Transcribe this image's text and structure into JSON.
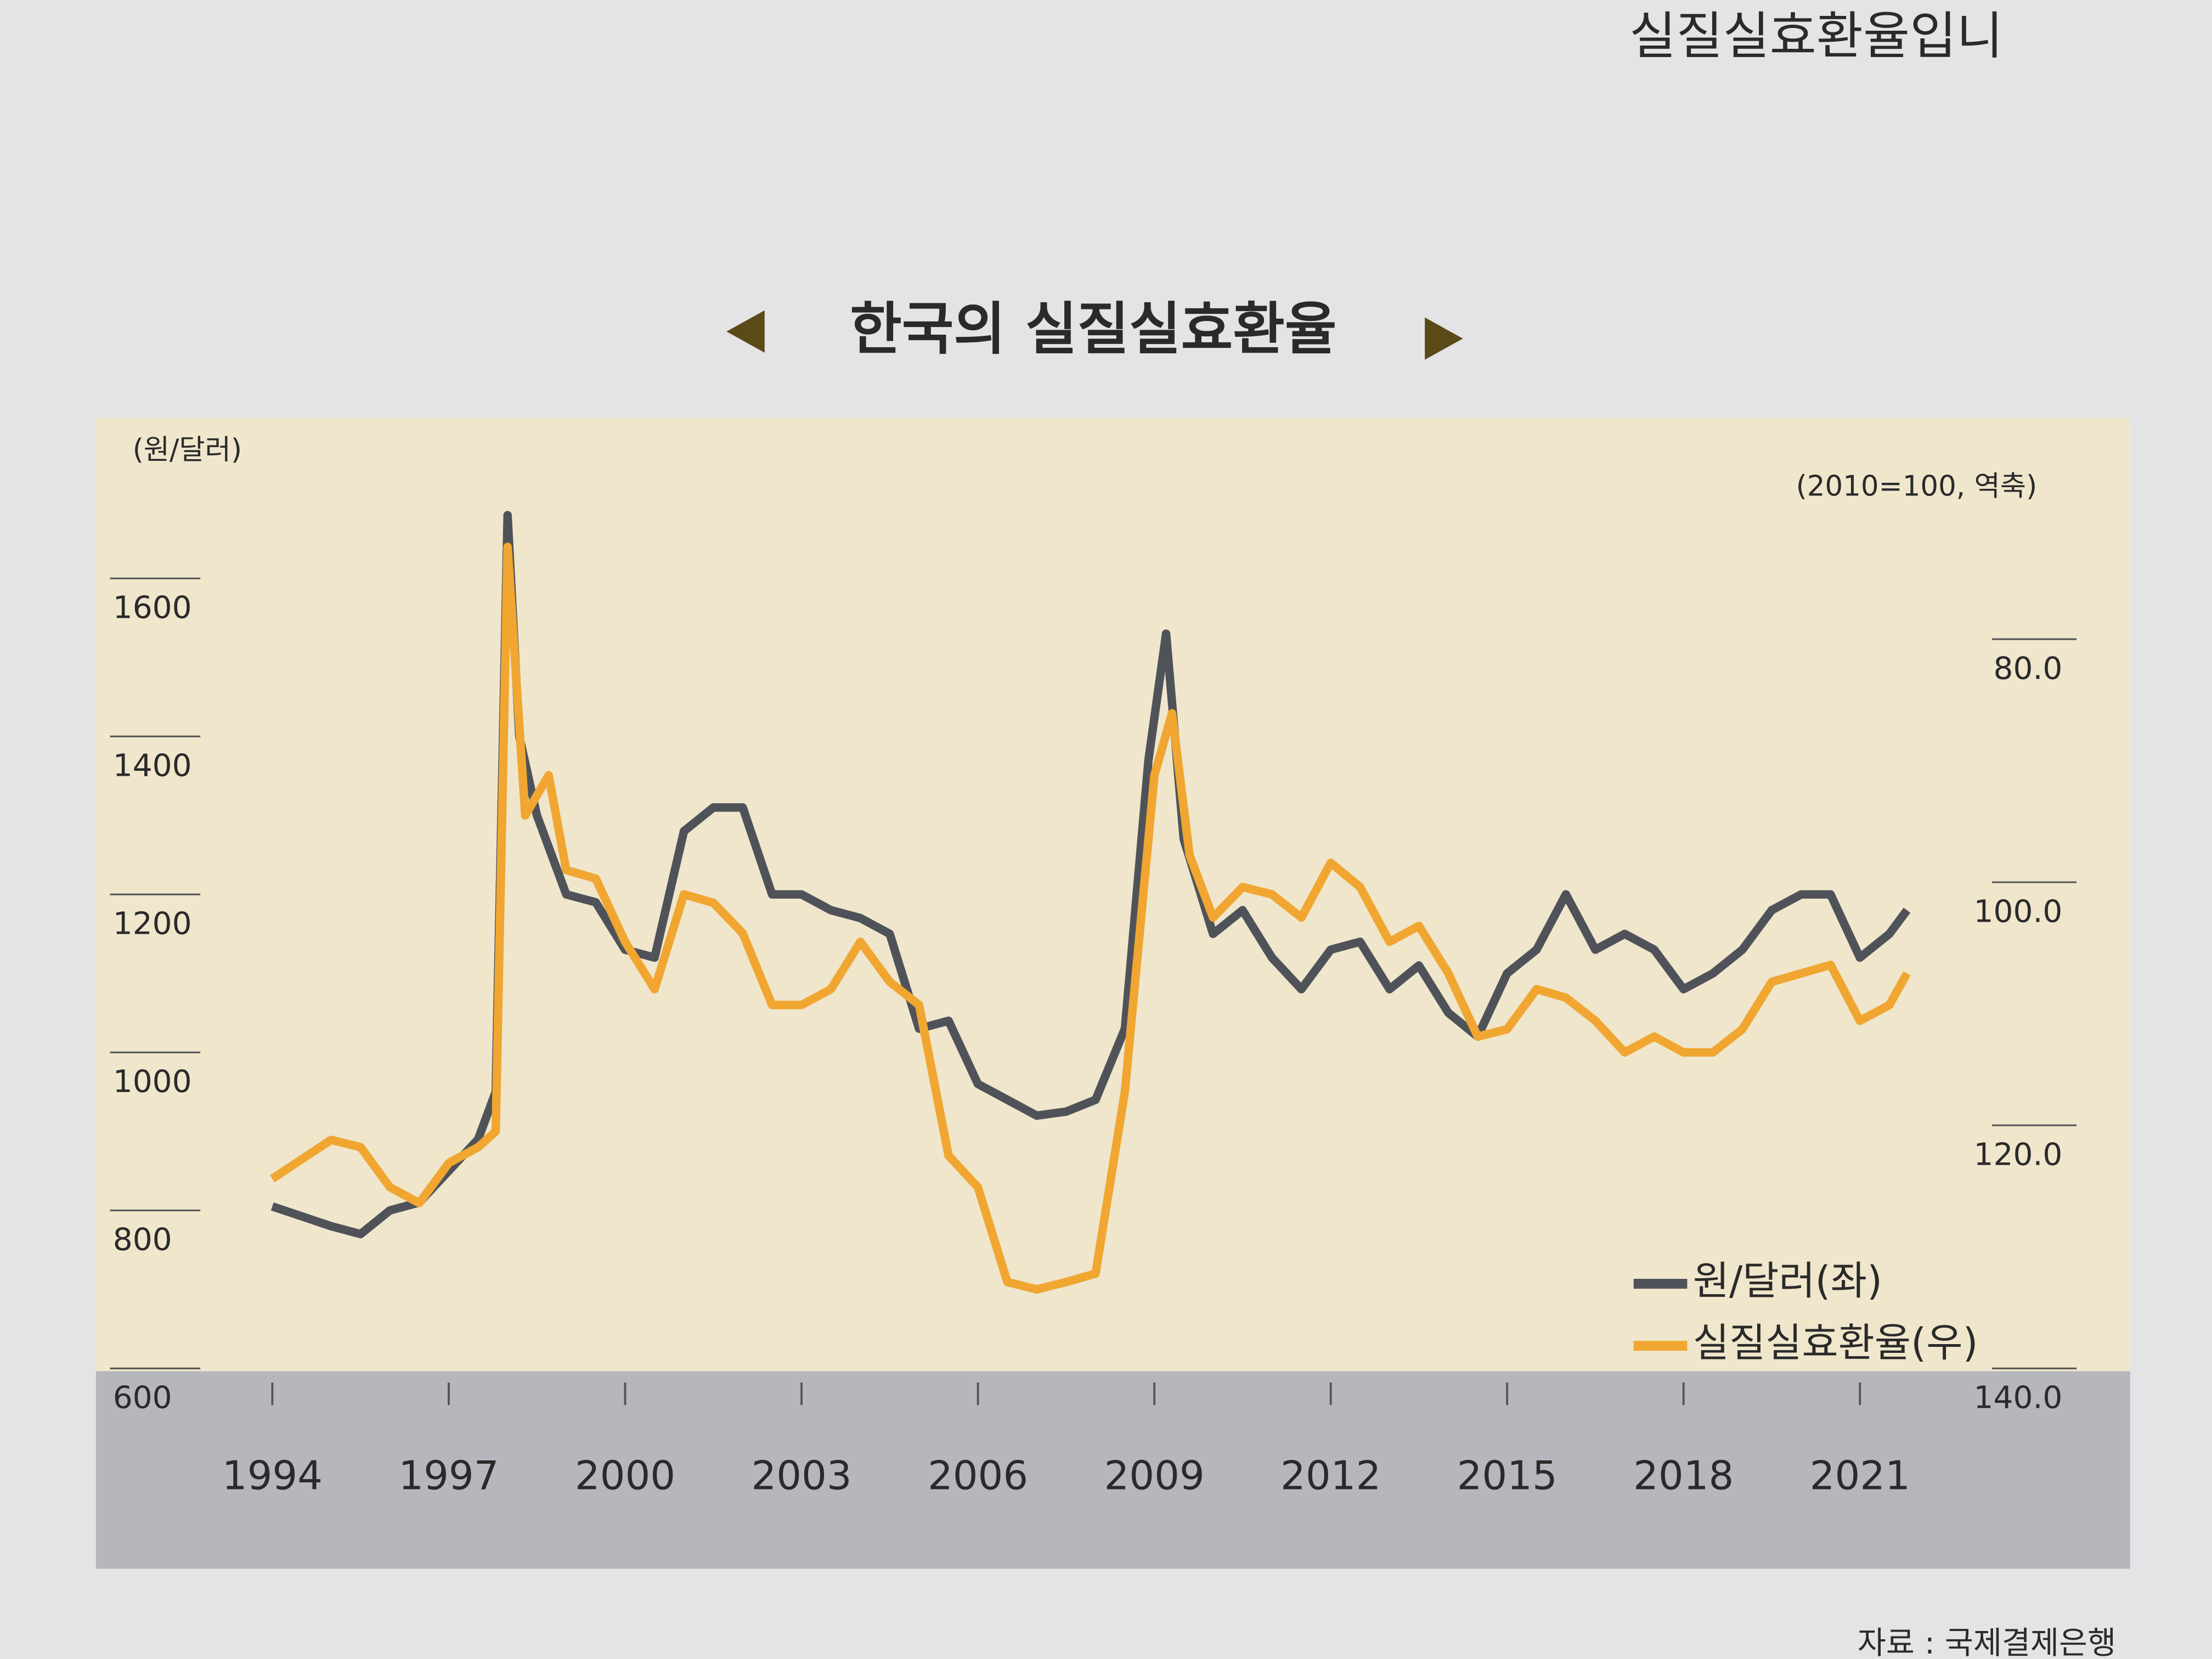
{
  "header_fragment": "실질실효환율입니",
  "chart_data": {
    "type": "line",
    "title": "한국의 실질실효환율",
    "y_axis_label": "(원/달러)",
    "y2_axis_label": "(2010=100, 역축)",
    "source": "자료 : 국제결제은행",
    "xlim": [
      1991,
      2025.5
    ],
    "xticks": [
      1994,
      1997,
      2000,
      2003,
      2006,
      2009,
      2012,
      2015,
      2018,
      2021
    ],
    "ylim": [
      600,
      1800
    ],
    "yticks": [
      600,
      800,
      1000,
      1200,
      1400,
      1600
    ],
    "y2lim": [
      140,
      62
    ],
    "y2ticks": [
      {
        "value": 80,
        "label": "80.0"
      },
      {
        "value": 100,
        "label": "100.0"
      },
      {
        "value": 120,
        "label": "120.0"
      },
      {
        "value": 140,
        "label": "140.0"
      }
    ],
    "legend": "lower right",
    "series": [
      {
        "name": "원/달러(좌)",
        "color": "#4f5359",
        "x": [
          1994.0,
          1995.0,
          1995.5,
          1996.0,
          1996.5,
          1997.0,
          1997.5,
          1997.8,
          1998.0,
          1998.2,
          1998.5,
          1999.0,
          1999.5,
          2000.0,
          2000.5,
          2001.0,
          2001.5,
          2002.0,
          2002.5,
          2003.0,
          2003.5,
          2004.0,
          2004.5,
          2005.0,
          2005.5,
          2006.0,
          2006.5,
          2007.0,
          2007.5,
          2008.0,
          2008.5,
          2008.9,
          2009.2,
          2009.5,
          2010.0,
          2010.5,
          2011.0,
          2011.5,
          2012.0,
          2012.5,
          2013.0,
          2013.5,
          2014.0,
          2014.5,
          2015.0,
          2015.5,
          2016.0,
          2016.5,
          2017.0,
          2017.5,
          2018.0,
          2018.5,
          2019.0,
          2019.5,
          2020.0,
          2020.5,
          2021.0,
          2021.5,
          2021.8
        ],
        "values": [
          805,
          780,
          770,
          800,
          810,
          850,
          890,
          950,
          1680,
          1400,
          1300,
          1200,
          1190,
          1130,
          1120,
          1280,
          1310,
          1310,
          1200,
          1200,
          1180,
          1170,
          1150,
          1030,
          1040,
          960,
          940,
          920,
          925,
          940,
          1030,
          1370,
          1530,
          1270,
          1150,
          1180,
          1120,
          1080,
          1130,
          1140,
          1080,
          1110,
          1050,
          1020,
          1100,
          1130,
          1200,
          1130,
          1150,
          1130,
          1080,
          1100,
          1130,
          1180,
          1200,
          1200,
          1120,
          1150,
          1180
        ]
      },
      {
        "name": "실질실효환율(우)",
        "color": "#f0a630",
        "axis": "y2",
        "x": [
          1994.0,
          1995.0,
          1995.5,
          1996.0,
          1996.5,
          1997.0,
          1997.5,
          1997.8,
          1998.0,
          1998.3,
          1998.7,
          1999.0,
          1999.5,
          2000.0,
          2000.5,
          2001.0,
          2001.5,
          2002.0,
          2002.5,
          2003.0,
          2003.5,
          2004.0,
          2004.5,
          2005.0,
          2005.5,
          2006.0,
          2006.5,
          2007.0,
          2007.5,
          2008.0,
          2008.5,
          2009.0,
          2009.3,
          2009.6,
          2010.0,
          2010.5,
          2011.0,
          2011.5,
          2012.0,
          2012.5,
          2013.0,
          2013.5,
          2014.0,
          2014.5,
          2015.0,
          2015.5,
          2016.0,
          2016.5,
          2017.0,
          2017.5,
          2018.0,
          2018.5,
          2019.0,
          2019.5,
          2020.0,
          2020.5,
          2021.0,
          2021.5,
          2021.8
        ],
        "values": [
          124.4,
          121.2,
          121.8,
          125.1,
          126.4,
          123.1,
          121.8,
          120.5,
          72.4,
          94.5,
          91.2,
          99.0,
          99.7,
          104.9,
          108.8,
          101.0,
          101.7,
          104.2,
          110.1,
          110.1,
          108.8,
          104.9,
          108.2,
          110.1,
          122.5,
          125.1,
          132.9,
          133.5,
          132.9,
          132.2,
          117.2,
          91.2,
          86.1,
          97.8,
          102.9,
          100.4,
          101.0,
          102.9,
          98.4,
          100.4,
          104.9,
          103.6,
          107.5,
          112.7,
          112.1,
          108.8,
          109.5,
          111.4,
          114.0,
          112.7,
          114.0,
          114.0,
          112.1,
          108.2,
          107.5,
          106.8,
          111.4,
          110.1,
          107.5
        ]
      }
    ]
  }
}
